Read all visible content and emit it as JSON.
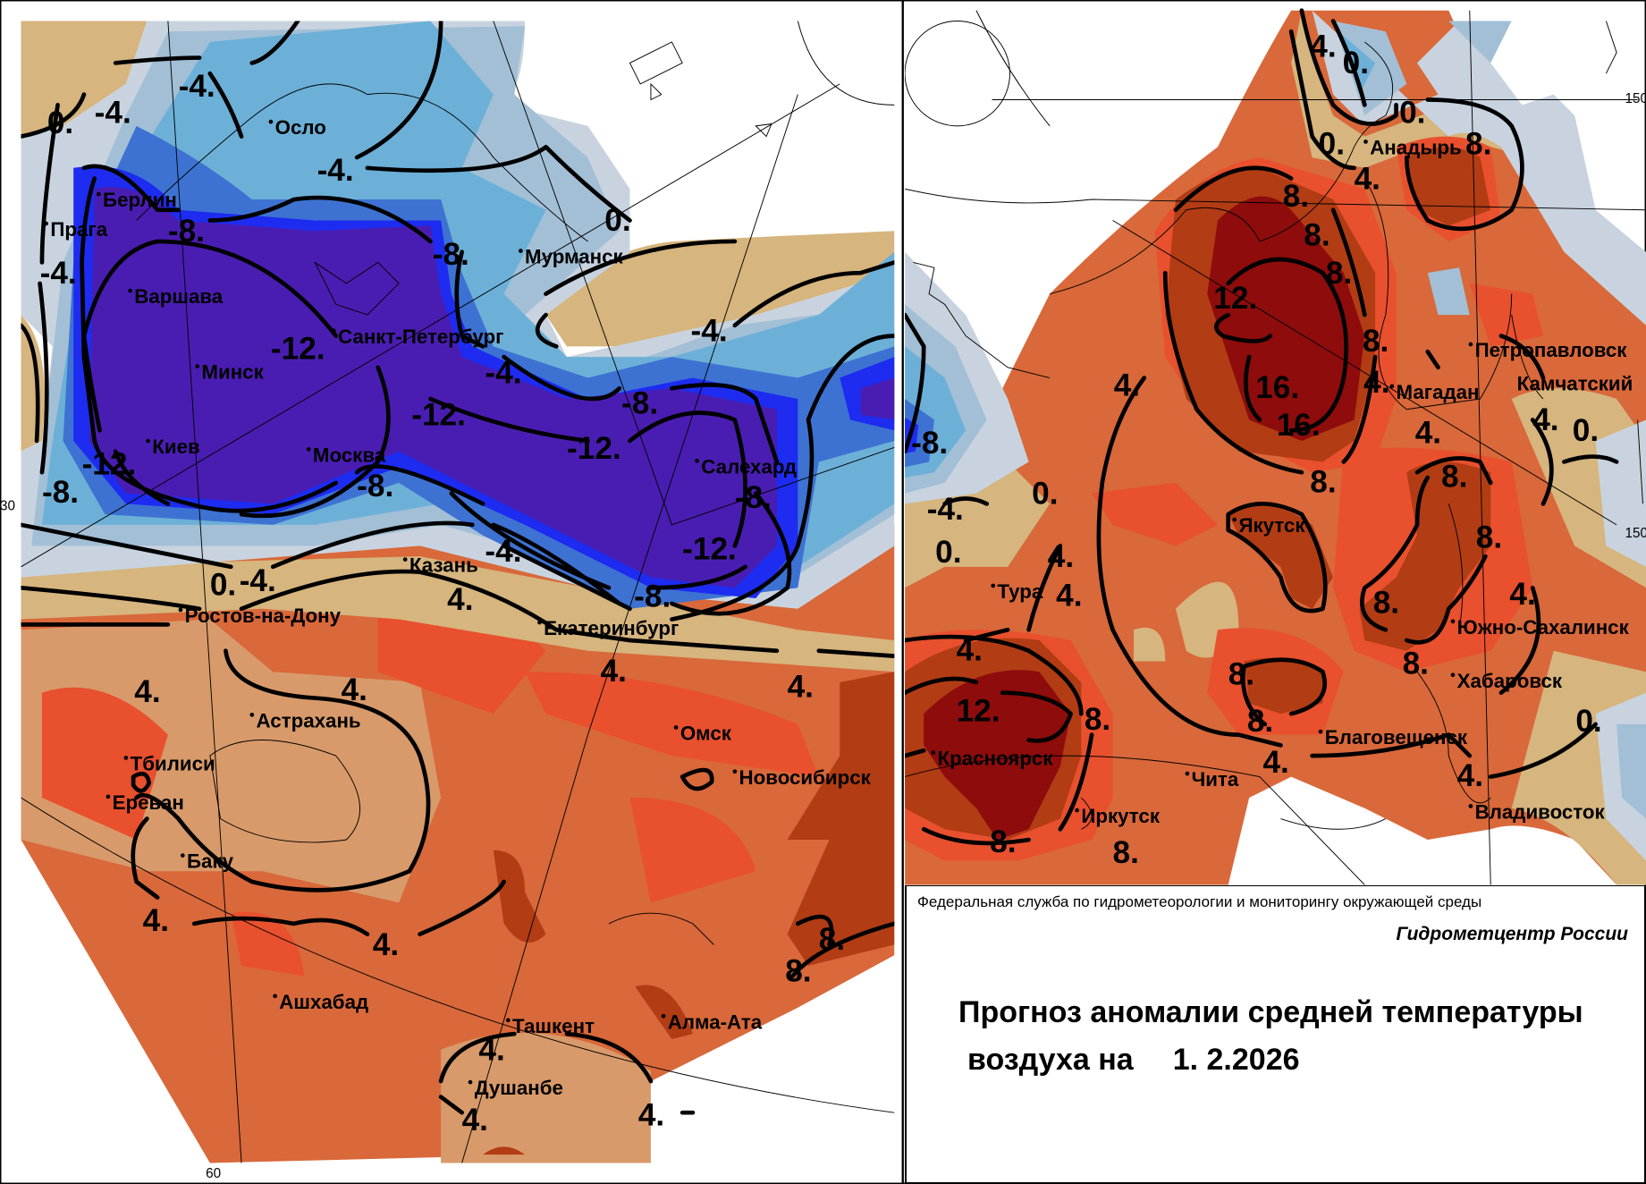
{
  "caption": {
    "agency": "Федеральная служба по гидрометеорологии и мониторингу окружающей среды",
    "center": "Гидрометцентр России",
    "title_line1": "Прогноз аномалии средней температуры",
    "title_line2": "воздуха на",
    "date": "1. 2.2026"
  },
  "grid_ticks": {
    "left_lat": "30",
    "left_lon": "60",
    "right_a": "150",
    "right_b": "150"
  },
  "colors": {
    "anom_le_-12": "#4a1db2",
    "anom_-10": "#1d2cf0",
    "anom_-8": "#3d72d2",
    "anom_-6": "#6cb0d8",
    "anom_-4": "#a2bfd6",
    "anom_-2": "#c8d3df",
    "anom_0": "#d6b57e",
    "anom_2": "#d89a6a",
    "anom_4": "#d9683a",
    "anom_6": "#e8502e",
    "anom_8": "#b23c14",
    "anom_12": "#8e0c0c"
  },
  "left_map": {
    "cities": [
      "Осло",
      "Берлин",
      "Прага",
      "Варшава",
      "Санкт-Петербург",
      "Минск",
      "Мурманск",
      "Киев",
      "Москва",
      "Салехард",
      "Казань",
      "Ростов-на-Дону",
      "Екатеринбург",
      "Астрахань",
      "Омск",
      "Тбилиси",
      "Новосибирск",
      "Ереван",
      "Баку",
      "Ашхабад",
      "Ташкент",
      "Алма-Ата",
      "Душанбе"
    ],
    "contour_labels": [
      "0.",
      "-4.",
      "-4.",
      "-4.",
      "-8.",
      "-4.",
      "-8.",
      "0.",
      "-12.",
      "-4.",
      "-4.",
      "-8.",
      "-12.",
      "-12.",
      "-12.",
      "-8.",
      "-8.",
      "-8.",
      "-4.",
      "-12.",
      "-4.",
      "0.",
      "4.",
      "-8.",
      "4.",
      "4.",
      "4.",
      "4.",
      "4.",
      "4.",
      "8.",
      "8.",
      "4.",
      "4.",
      "4."
    ]
  },
  "right_map": {
    "cities": [
      "Анадырь",
      "Петропавловск",
      "Камчатский",
      "Магадан",
      "Якутск",
      "Тура",
      "Южно-Сахалинск",
      "Хабаровск",
      "Благовещенск",
      "Красноярск",
      "Чита",
      "Иркутск",
      "Владивосток"
    ],
    "contour_labels": [
      "4.",
      "0.",
      "0.",
      "0.",
      "8.",
      "4.",
      "8.",
      "8.",
      "8.",
      "12.",
      "8.",
      "16.",
      "4.",
      "16.",
      "4.",
      "4.",
      "4.",
      "0.",
      "-8.",
      "8.",
      "8.",
      "0.",
      "-4.",
      "0.",
      "8.",
      "4.",
      "4.",
      "8.",
      "4.",
      "4.",
      "8.",
      "8.",
      "12.",
      "8.",
      "8.",
      "0.",
      "4.",
      "4.",
      "8.",
      "8."
    ]
  }
}
